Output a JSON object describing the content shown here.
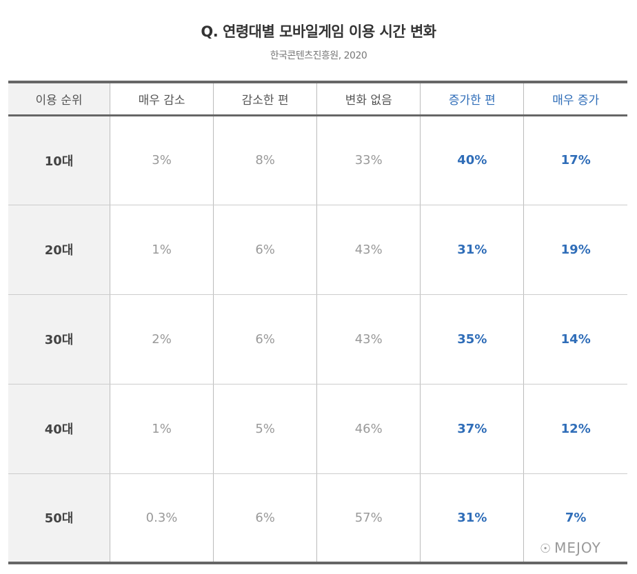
{
  "chart_data": {
    "type": "table",
    "title": "Q. 연령대별 모바일게임 이용 시간 변화",
    "subtitle": "한국콘텐츠진흥원, 2020",
    "columns": [
      "이용 순위",
      "매우 감소",
      "감소한 편",
      "변화 없음",
      "증가한 편",
      "매우 증가"
    ],
    "rows": [
      [
        "10대",
        "3%",
        "8%",
        "33%",
        "40%",
        "17%"
      ],
      [
        "20대",
        "1%",
        "6%",
        "43%",
        "31%",
        "19%"
      ],
      [
        "30대",
        "2%",
        "6%",
        "43%",
        "35%",
        "14%"
      ],
      [
        "40대",
        "1%",
        "5%",
        "46%",
        "37%",
        "12%"
      ],
      [
        "50대",
        "0.3%",
        "6%",
        "57%",
        "31%",
        "7%"
      ]
    ],
    "highlight_columns": [
      4,
      5
    ],
    "highlight_color": "#2f6db8"
  },
  "watermark": {
    "text": "MEJOY",
    "icon": "wechat-icon"
  }
}
